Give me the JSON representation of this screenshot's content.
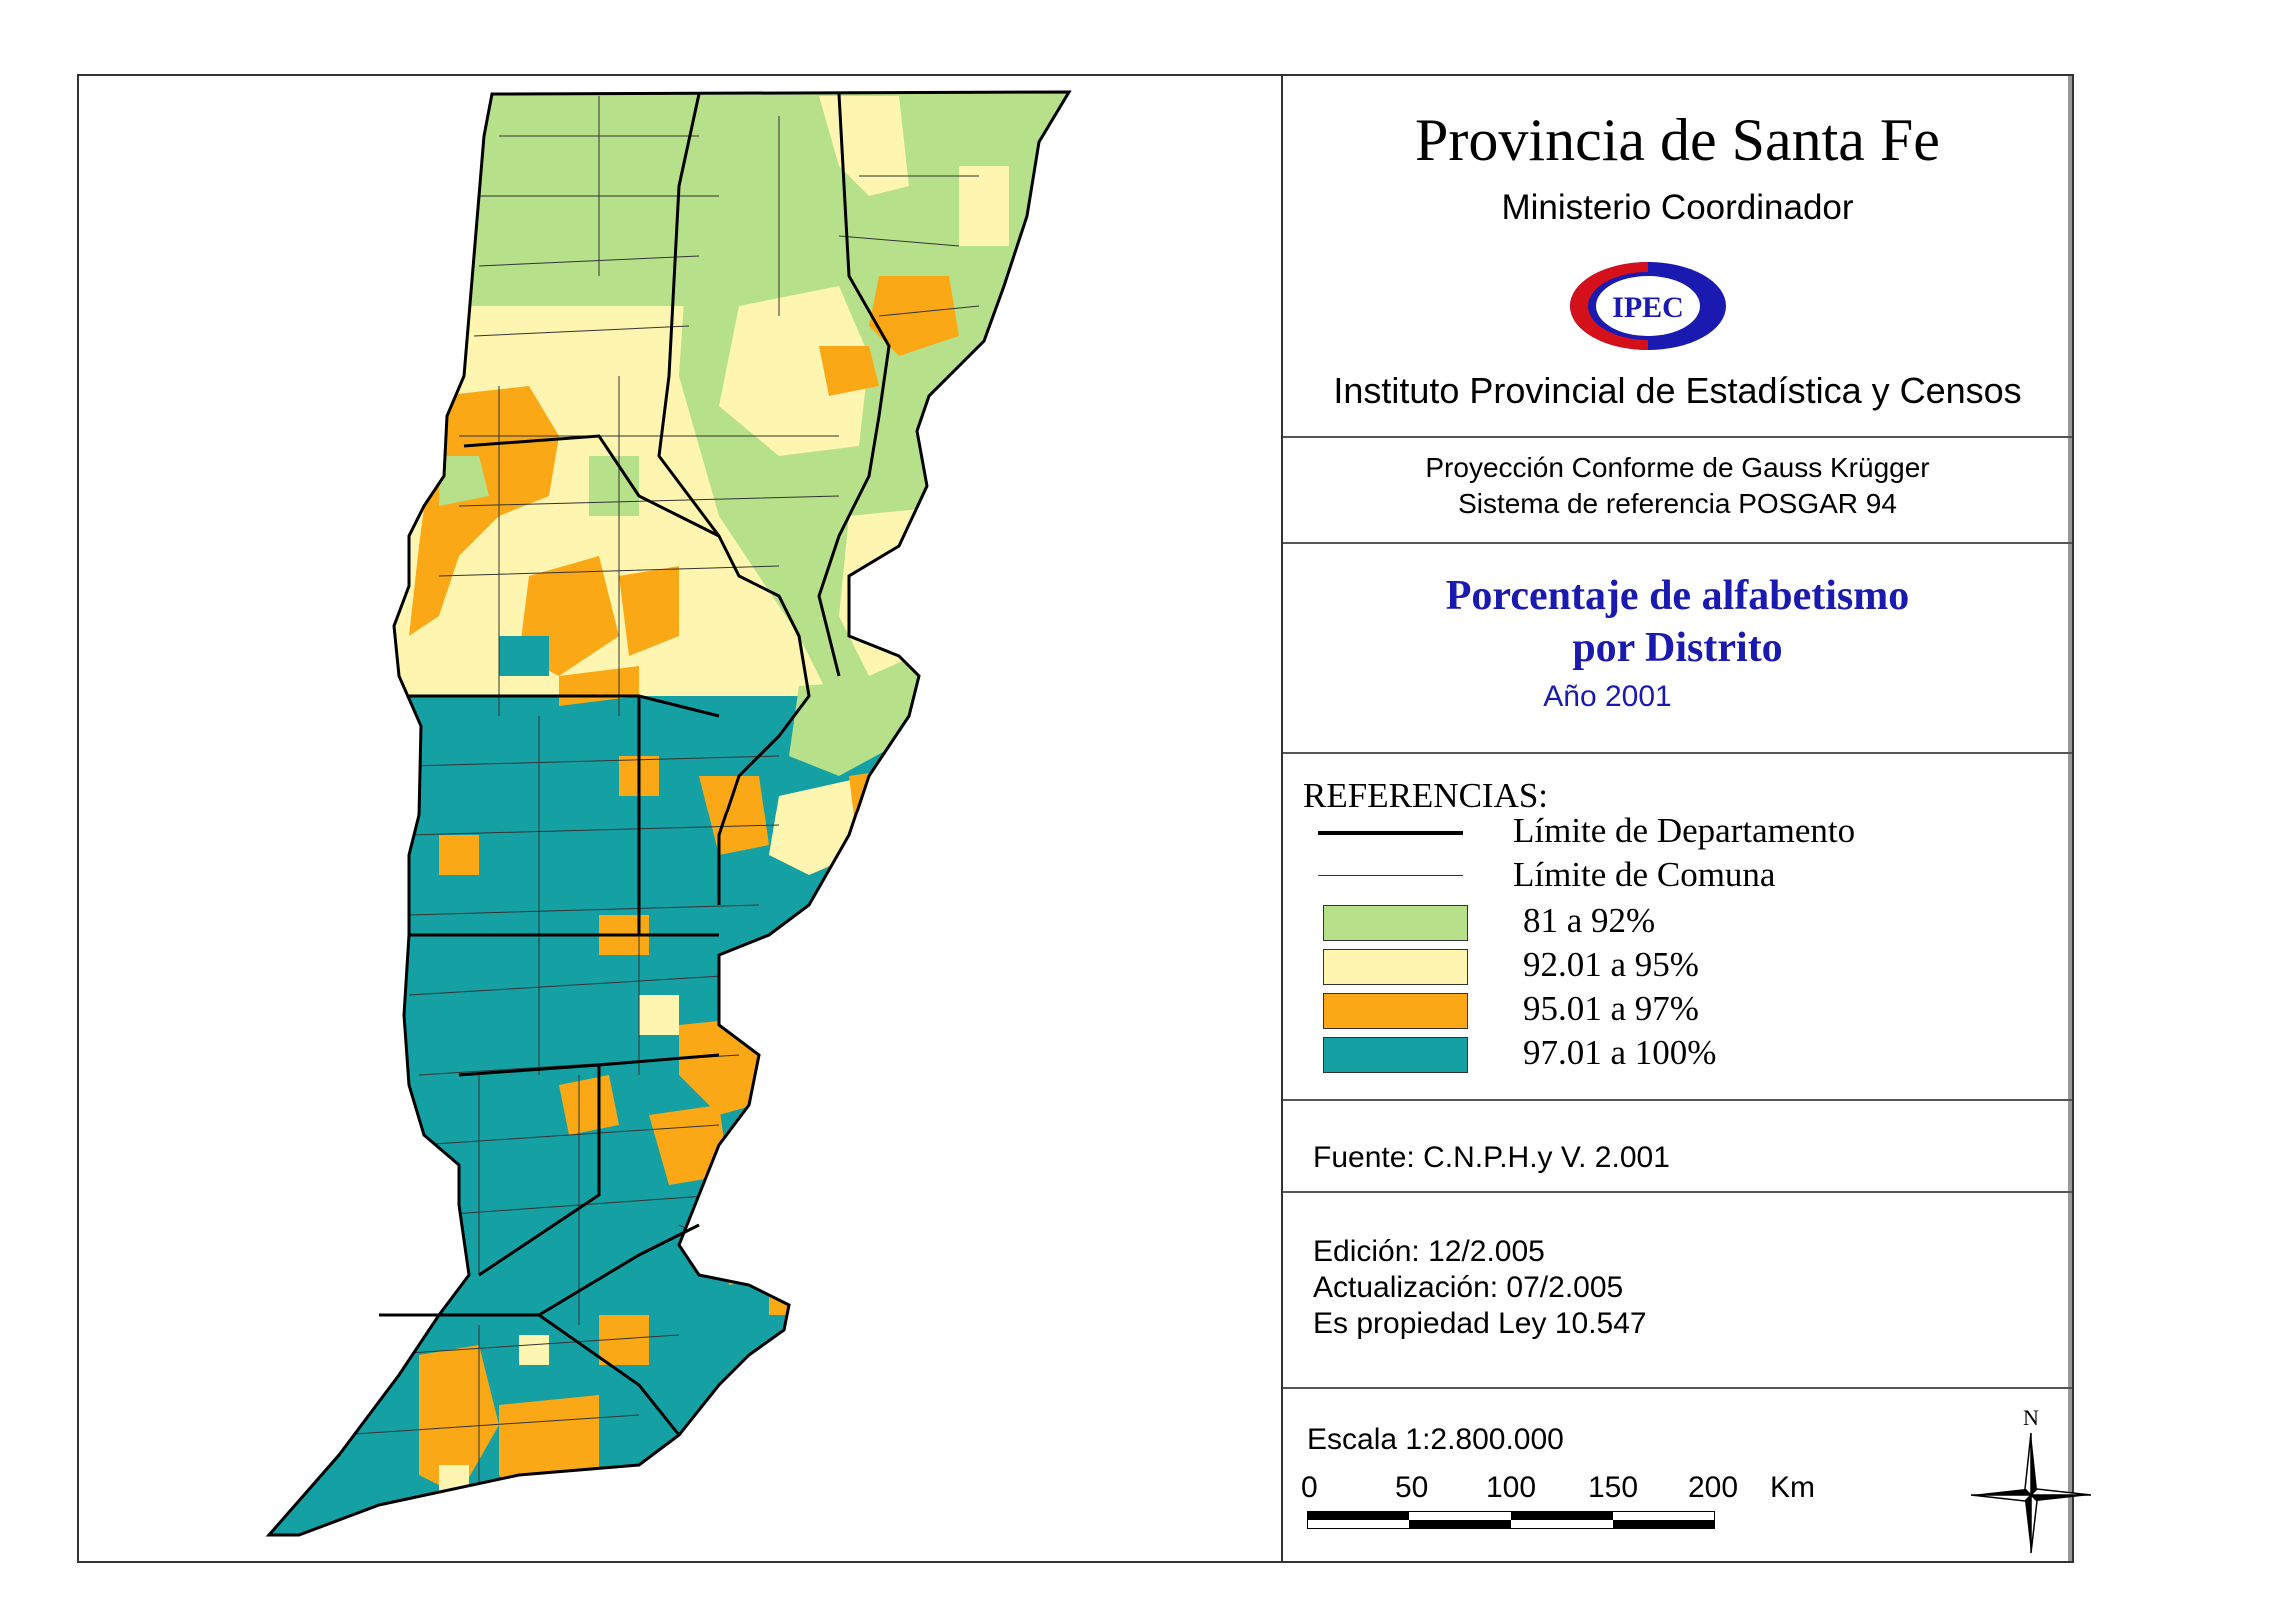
{
  "header": {
    "title": "Provincia de Santa Fe",
    "subtitle": "Ministerio Coordinador",
    "logo_text": "IPEC",
    "institute": "Instituto Provincial de Estadística y Censos"
  },
  "projection": {
    "line1": "Proyección Conforme de Gauss Krügger",
    "line2": "Sistema de referencia POSGAR 94"
  },
  "theme": {
    "line1": "Porcentaje de alfabetismo",
    "line2": "por Distrito",
    "year": "Año 2001"
  },
  "legend": {
    "title": "REFERENCIAS:",
    "lines": [
      {
        "label": "Límite de Departamento"
      },
      {
        "label": "Límite de Comuna"
      }
    ],
    "classes": [
      {
        "label": "81 a 92%",
        "color": "#b6e08a"
      },
      {
        "label": "92.01 a 95%",
        "color": "#fdf5b0"
      },
      {
        "label": "95.01 a 97%",
        "color": "#fba817"
      },
      {
        "label": "97.01 a 100%",
        "color": "#15a0a4"
      }
    ]
  },
  "source": "Fuente:  C.N.P.H.y V. 2.001",
  "edition": {
    "edicion": "Edición:  12/2.005",
    "actualizacion": "Actualización:  07/2.005",
    "propiedad": "Es propiedad Ley 10.547"
  },
  "scale": {
    "text": "Escala 1:2.800.000",
    "ticks": [
      "0",
      "50",
      "100",
      "150",
      "200"
    ],
    "unit": "Km"
  },
  "compass": {
    "north": "N"
  }
}
